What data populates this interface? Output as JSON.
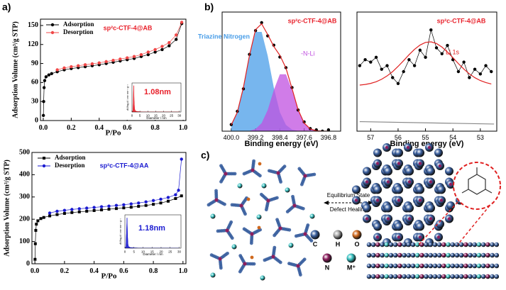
{
  "panel_labels": [
    "a)",
    "b)",
    "c)"
  ],
  "chart_data": [
    {
      "type": "line",
      "xlabel": "P/Po",
      "ylabel": "Adsorption Volume (cm³/g STP)",
      "annotation": {
        "text": "sp²c-CTF-4@AB",
        "color": "#e8202a"
      },
      "legend": "upper left",
      "xlim": [
        -0.02,
        1.02
      ],
      "ylim": [
        0,
        160
      ],
      "xticks": [
        {
          "value": 0,
          "label": "0.0"
        },
        {
          "value": 0.2,
          "label": "0.2"
        },
        {
          "value": 0.4,
          "label": "0.4"
        },
        {
          "value": 0.6,
          "label": "0.6"
        },
        {
          "value": 0.8,
          "label": "0.8"
        },
        {
          "value": 1,
          "label": "1.0"
        }
      ],
      "yticks": [
        0,
        30,
        60,
        90,
        120,
        150
      ],
      "series": [
        {
          "name": "Adsorption",
          "color": "#000000",
          "marker": "circle",
          "line": true,
          "x": [
            0.001,
            0.003,
            0.006,
            0.01,
            0.02,
            0.04,
            0.06,
            0.1,
            0.15,
            0.2,
            0.25,
            0.3,
            0.35,
            0.4,
            0.45,
            0.5,
            0.55,
            0.6,
            0.65,
            0.7,
            0.75,
            0.8,
            0.85,
            0.9,
            0.95,
            0.99
          ],
          "values": [
            8,
            30,
            52,
            63,
            69,
            72,
            74,
            77,
            80,
            82,
            83.5,
            85,
            86.5,
            88,
            90,
            92,
            94,
            96,
            98,
            101,
            104,
            108,
            112,
            118,
            128,
            153
          ]
        },
        {
          "name": "Desorption",
          "color": "#f04848",
          "marker": "circle",
          "line": true,
          "x": [
            0.99,
            0.95,
            0.9,
            0.85,
            0.8,
            0.75,
            0.7,
            0.65,
            0.6,
            0.55,
            0.5,
            0.45,
            0.4,
            0.35,
            0.3,
            0.25,
            0.2,
            0.15,
            0.1
          ],
          "values": [
            155,
            135,
            123,
            117,
            112,
            108,
            104,
            101,
            99,
            97,
            95,
            93,
            91,
            89.5,
            88,
            86.5,
            85,
            83,
            80
          ]
        }
      ]
    },
    {
      "type": "line",
      "xlabel": "Diameter / nm",
      "ylabel": "dV/log d / cm³ nm⁻¹ g⁻¹",
      "annotation": {
        "text": "1.08nm",
        "color": "#e8202a"
      },
      "xlim": [
        0,
        31
      ],
      "ylim": [
        0,
        1.1
      ],
      "xticks": [
        0,
        5,
        10,
        15,
        20,
        25,
        30
      ],
      "series": [
        {
          "color": "#e8202a",
          "marker": "none",
          "line": true,
          "fill": true,
          "x": [
            0,
            0.6,
            0.9,
            1.08,
            1.3,
            1.6,
            2,
            3,
            5,
            10,
            20,
            30
          ],
          "values": [
            0,
            0.05,
            0.5,
            1,
            0.45,
            0.12,
            0.05,
            0.02,
            0.01,
            0,
            0,
            0
          ]
        }
      ]
    },
    {
      "type": "line",
      "xlabel": "P/Po",
      "ylabel": "Adsorption Volume (cm³/g STP)",
      "annotation": {
        "text": "sp²c-CTF-4@AA",
        "color": "#1a1ad0"
      },
      "legend": "upper left",
      "xlim": [
        -0.02,
        1.02
      ],
      "ylim": [
        0,
        500
      ],
      "xticks": [
        {
          "value": 0,
          "label": "0.0"
        },
        {
          "value": 0.2,
          "label": "0.2"
        },
        {
          "value": 0.4,
          "label": "0.4"
        },
        {
          "value": 0.6,
          "label": "0.6"
        },
        {
          "value": 0.8,
          "label": "0.8"
        },
        {
          "value": 1,
          "label": "1.0"
        }
      ],
      "yticks": [
        0,
        100,
        200,
        300,
        400,
        500
      ],
      "series": [
        {
          "name": "Adsorption",
          "color": "#000000",
          "marker": "square",
          "line": true,
          "x": [
            0.001,
            0.003,
            0.006,
            0.01,
            0.02,
            0.04,
            0.06,
            0.1,
            0.15,
            0.2,
            0.25,
            0.3,
            0.35,
            0.4,
            0.45,
            0.5,
            0.55,
            0.6,
            0.65,
            0.7,
            0.75,
            0.8,
            0.85,
            0.9,
            0.95,
            0.99
          ],
          "values": [
            20,
            90,
            150,
            178,
            193,
            203,
            208,
            215,
            221,
            226,
            230,
            233,
            236,
            239,
            242,
            245,
            248,
            251,
            254,
            258,
            262,
            267,
            273,
            281,
            293,
            305
          ]
        },
        {
          "name": "Desorption",
          "color": "#1a1ad0",
          "marker": "circle",
          "line": true,
          "x": [
            0.99,
            0.97,
            0.95,
            0.9,
            0.85,
            0.8,
            0.75,
            0.7,
            0.65,
            0.6,
            0.55,
            0.5,
            0.45,
            0.4,
            0.35,
            0.3,
            0.25,
            0.2,
            0.15,
            0.1
          ],
          "values": [
            470,
            330,
            310,
            298,
            290,
            284,
            278,
            273,
            269,
            265,
            262,
            259,
            256,
            253,
            250,
            247,
            244,
            240,
            236,
            228
          ]
        }
      ]
    },
    {
      "type": "line",
      "xlabel": "Diameter / nm",
      "ylabel": "dV/log d / cm³ nm⁻¹ g⁻¹",
      "annotation": {
        "text": "1.18nm",
        "color": "#1a1ad0"
      },
      "xlim": [
        0,
        31
      ],
      "ylim": [
        0,
        1.1
      ],
      "xticks": [
        0,
        5,
        10,
        15,
        20,
        25,
        30
      ],
      "series": [
        {
          "color": "#1a1ad0",
          "marker": "none",
          "line": true,
          "fill": true,
          "x": [
            0,
            0.6,
            0.9,
            1.18,
            1.4,
            1.7,
            2,
            3,
            5,
            10,
            20,
            30
          ],
          "values": [
            0,
            0.05,
            0.5,
            1,
            0.45,
            0.12,
            0.05,
            0.02,
            0.01,
            0,
            0,
            0
          ]
        }
      ]
    },
    {
      "type": "line",
      "xlabel": "Binding energy (eV)",
      "annotation": {
        "text": "sp²c-CTF-4@AB",
        "color": "#e8202a"
      },
      "xlim": [
        400.3,
        396.4
      ],
      "ylim": [
        0,
        0.9
      ],
      "xticks": [
        {
          "value": 400,
          "label": "400.0"
        },
        {
          "value": 399.2,
          "label": "399.2"
        },
        {
          "value": 398.4,
          "label": "398.4"
        },
        {
          "value": 397.6,
          "label": "397.6"
        },
        {
          "value": 396.8,
          "label": "396.8"
        }
      ],
      "series": [
        {
          "name": "Triazine Nitrogen",
          "color": "#4a9ee8",
          "marker": "none",
          "line": false,
          "fill": true,
          "x": [
            400.0,
            399.8,
            399.6,
            399.4,
            399.2,
            399.0,
            398.8,
            398.6,
            398.4,
            398.2,
            398.0,
            397.8,
            397.6,
            397.4,
            397.2,
            397.0,
            396.8
          ],
          "values": [
            0.047,
            0.143,
            0.33,
            0.57,
            0.75,
            0.75,
            0.57,
            0.33,
            0.143,
            0.047,
            0.012,
            0.002,
            0,
            0,
            0,
            0,
            0
          ]
        },
        {
          "name": "-N-Li",
          "color": "#c050e0",
          "marker": "none",
          "line": false,
          "fill": true,
          "x": [
            400.0,
            399.8,
            399.6,
            399.4,
            399.2,
            399.0,
            398.8,
            398.6,
            398.4,
            398.2,
            398.0,
            397.8,
            397.6,
            397.4,
            397.2,
            397.0,
            396.8
          ],
          "values": [
            0,
            0,
            0,
            0.003,
            0.017,
            0.061,
            0.16,
            0.31,
            0.43,
            0.43,
            0.31,
            0.16,
            0.061,
            0.017,
            0.003,
            0,
            0
          ]
        },
        {
          "color": "#000000",
          "marker": "circle",
          "line": false,
          "x": [
            400.0,
            399.8,
            399.6,
            399.4,
            399.2,
            399.0,
            398.8,
            398.6,
            398.4,
            398.2,
            398.0,
            397.8,
            397.6,
            397.4,
            397.2,
            397.0,
            396.8
          ],
          "values": [
            0.05,
            0.15,
            0.32,
            0.58,
            0.76,
            0.82,
            0.72,
            0.65,
            0.56,
            0.48,
            0.33,
            0.16,
            0.07,
            0.02,
            0.01,
            0,
            0.01
          ]
        },
        {
          "color": "#e02020",
          "marker": "none",
          "line": true,
          "x": [
            400.0,
            399.8,
            399.6,
            399.4,
            399.2,
            399.0,
            398.8,
            398.6,
            398.4,
            398.2,
            398.0,
            397.8,
            397.6,
            397.4,
            397.2,
            397.0,
            396.8
          ],
          "values": [
            0.047,
            0.143,
            0.33,
            0.573,
            0.767,
            0.811,
            0.73,
            0.64,
            0.573,
            0.477,
            0.322,
            0.162,
            0.061,
            0.017,
            0.003,
            0,
            0
          ]
        }
      ]
    },
    {
      "type": "line",
      "xlabel": "Binding energy (eV)",
      "annotation": {
        "text": "sp²c-CTF-4@AB",
        "color": "#e8202a"
      },
      "xlim": [
        57.5,
        52.4
      ],
      "ylim": [
        0,
        1
      ],
      "xticks": [
        57,
        56,
        55,
        54,
        53
      ],
      "series": [
        {
          "color": "#000000",
          "marker": "circle",
          "line": true,
          "x": [
            57.4,
            57.2,
            57.0,
            56.8,
            56.6,
            56.4,
            56.2,
            56.0,
            55.8,
            55.6,
            55.4,
            55.2,
            55.0,
            54.8,
            54.6,
            54.4,
            54.2,
            54.0,
            53.8,
            53.6,
            53.4,
            53.2,
            53.0,
            52.8,
            52.6
          ],
          "values": [
            0.55,
            0.6,
            0.58,
            0.62,
            0.52,
            0.55,
            0.45,
            0.4,
            0.5,
            0.6,
            0.55,
            0.68,
            0.62,
            0.85,
            0.7,
            0.65,
            0.72,
            0.6,
            0.5,
            0.58,
            0.45,
            0.52,
            0.48,
            0.55,
            0.5
          ]
        },
        {
          "name": "Li 1s",
          "color": "#e02020",
          "marker": "none",
          "line": true,
          "x": [
            57.4,
            57.2,
            57.0,
            56.8,
            56.6,
            56.4,
            56.2,
            56.0,
            55.8,
            55.6,
            55.4,
            55.2,
            55.0,
            54.8,
            54.6,
            54.4,
            54.2,
            54.0,
            53.8,
            53.6,
            53.4,
            53.2,
            53.0,
            52.8,
            52.6
          ],
          "values": [
            0.387,
            0.392,
            0.401,
            0.415,
            0.436,
            0.464,
            0.5,
            0.544,
            0.592,
            0.642,
            0.687,
            0.723,
            0.745,
            0.75,
            0.736,
            0.706,
            0.665,
            0.617,
            0.567,
            0.521,
            0.481,
            0.449,
            0.425,
            0.408,
            0.396
          ]
        },
        {
          "color": "#888888",
          "marker": "none",
          "line": true,
          "x": [
            57.4,
            52.5
          ],
          "values": [
            0.08,
            0.06
          ]
        }
      ]
    }
  ],
  "scheme": {
    "arrow_top": "Equilibrium State",
    "arrow_bottom": "Defect  Healing",
    "legend": [
      {
        "label": "C",
        "color": "#3a5f9e"
      },
      {
        "label": "H",
        "color": "#a8a8a8"
      },
      {
        "label": "O",
        "color": "#d0691e"
      },
      {
        "label": "N",
        "color": "#8b1f5e"
      },
      {
        "label": "M⁺",
        "color": "#3cc4c4"
      }
    ]
  }
}
